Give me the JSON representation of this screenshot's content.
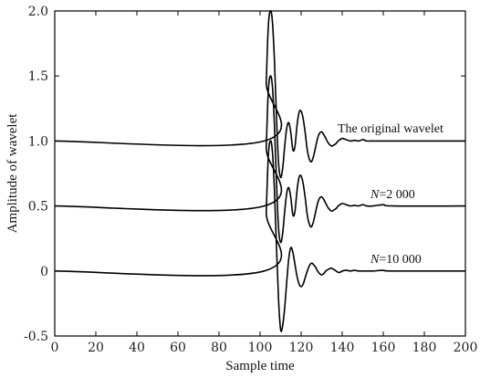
{
  "chart_data": {
    "type": "line",
    "title": "",
    "xlabel": "Sample time",
    "ylabel": "Amplitude of wavelet",
    "xlim": [
      0,
      200
    ],
    "ylim": [
      -0.5,
      2.0
    ],
    "xticks": [
      0,
      20,
      40,
      60,
      80,
      100,
      120,
      140,
      160,
      180,
      200
    ],
    "yticks": [
      "-0.5",
      "0",
      "0.5",
      "1.0",
      "1.5",
      "2.0"
    ],
    "grid": false,
    "legend": "none",
    "series": [
      {
        "label_text": "The original wavelet",
        "offset": 1.0,
        "color": "#000000",
        "x": [
          0,
          102,
          103,
          104,
          105,
          106,
          107,
          108,
          109,
          110,
          111,
          112,
          113,
          114,
          115,
          116,
          117,
          118,
          119,
          120,
          121,
          122,
          123,
          124,
          125,
          126,
          127,
          128,
          129,
          130,
          131,
          132,
          133,
          134,
          135,
          136,
          137,
          138,
          139,
          140,
          142,
          144,
          146,
          148,
          150,
          152,
          155,
          160,
          165,
          200
        ],
        "y": [
          1.0,
          1.0,
          1.45,
          1.88,
          2.0,
          1.92,
          1.62,
          1.18,
          0.83,
          0.72,
          0.79,
          0.96,
          1.1,
          1.14,
          1.06,
          0.93,
          0.96,
          1.12,
          1.22,
          1.23,
          1.17,
          1.06,
          0.93,
          0.86,
          0.84,
          0.88,
          0.95,
          1.02,
          1.06,
          1.07,
          1.05,
          1.02,
          0.99,
          0.97,
          0.96,
          0.97,
          0.98,
          1.0,
          1.01,
          1.02,
          1.01,
          1.0,
          1.005,
          1.0,
          1.01,
          1.0,
          1.0,
          1.0,
          1.0,
          1.0
        ]
      },
      {
        "label_text": "N=2 000",
        "label_italic": "N",
        "label_rest": "=2 000",
        "offset": 0.5,
        "color": "#000000",
        "x": [
          0,
          102,
          103,
          104,
          105,
          106,
          107,
          108,
          109,
          110,
          111,
          112,
          113,
          114,
          115,
          116,
          117,
          118,
          119,
          120,
          121,
          122,
          123,
          124,
          125,
          126,
          127,
          128,
          129,
          130,
          131,
          132,
          133,
          134,
          135,
          136,
          137,
          138,
          139,
          140,
          142,
          144,
          146,
          148,
          150,
          152,
          155,
          160,
          165,
          200
        ],
        "y": [
          0.5,
          0.5,
          0.95,
          1.38,
          1.5,
          1.42,
          1.12,
          0.68,
          0.33,
          0.22,
          0.29,
          0.46,
          0.6,
          0.64,
          0.56,
          0.43,
          0.46,
          0.62,
          0.72,
          0.73,
          0.67,
          0.56,
          0.43,
          0.36,
          0.34,
          0.38,
          0.45,
          0.52,
          0.56,
          0.57,
          0.55,
          0.52,
          0.49,
          0.47,
          0.46,
          0.47,
          0.48,
          0.5,
          0.51,
          0.52,
          0.51,
          0.5,
          0.505,
          0.5,
          0.51,
          0.5,
          0.5,
          0.51,
          0.5,
          0.5
        ]
      },
      {
        "label_text": "N=10 000",
        "label_italic": "N",
        "label_rest": "=10 000",
        "offset": 0.0,
        "color": "#000000",
        "x": [
          0,
          102,
          103,
          104,
          105,
          106,
          107,
          108,
          109,
          110,
          111,
          112,
          113,
          114,
          115,
          116,
          117,
          118,
          119,
          120,
          121,
          122,
          123,
          124,
          125,
          126,
          127,
          128,
          129,
          130,
          131,
          132,
          133,
          134,
          135,
          136,
          137,
          138,
          139,
          140,
          142,
          144,
          146,
          148,
          150,
          152,
          155,
          160,
          165,
          200
        ],
        "y": [
          0.0,
          0.0,
          0.45,
          0.88,
          1.0,
          0.92,
          0.62,
          0.18,
          -0.22,
          -0.45,
          -0.42,
          -0.28,
          -0.08,
          0.1,
          0.18,
          0.14,
          0.05,
          -0.04,
          -0.1,
          -0.12,
          -0.1,
          -0.05,
          0.0,
          0.04,
          0.06,
          0.05,
          0.03,
          0.0,
          -0.02,
          -0.03,
          -0.02,
          0.0,
          0.01,
          0.02,
          0.02,
          0.01,
          0.0,
          -0.01,
          -0.01,
          0.0,
          0.005,
          0.0,
          0.005,
          0.0,
          0.0,
          0.0,
          0.0,
          0.005,
          0.0,
          0.0
        ]
      }
    ]
  }
}
